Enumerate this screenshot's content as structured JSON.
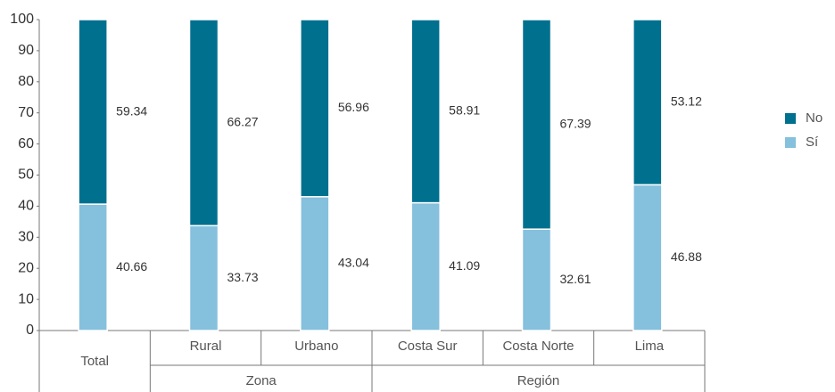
{
  "chart_data": {
    "type": "stacked_bar",
    "categories": [
      "Total",
      "Rural",
      "Urbano",
      "Costa Sur",
      "Costa Norte",
      "Lima"
    ],
    "groups": [
      "Zona",
      "Región"
    ],
    "category_groups": [
      null,
      0,
      0,
      1,
      1,
      1
    ],
    "series": [
      {
        "name": "No",
        "color": "#00708f",
        "values": [
          59.34,
          66.27,
          56.96,
          58.91,
          67.39,
          53.12
        ]
      },
      {
        "name": "Sí",
        "color": "#85c0dd",
        "values": [
          40.66,
          33.73,
          43.04,
          41.09,
          32.61,
          46.88
        ]
      }
    ],
    "ylim": [
      0,
      100
    ],
    "yticks": [
      0,
      10,
      20,
      30,
      40,
      50,
      60,
      70,
      80,
      90,
      100
    ],
    "legend": "right"
  }
}
